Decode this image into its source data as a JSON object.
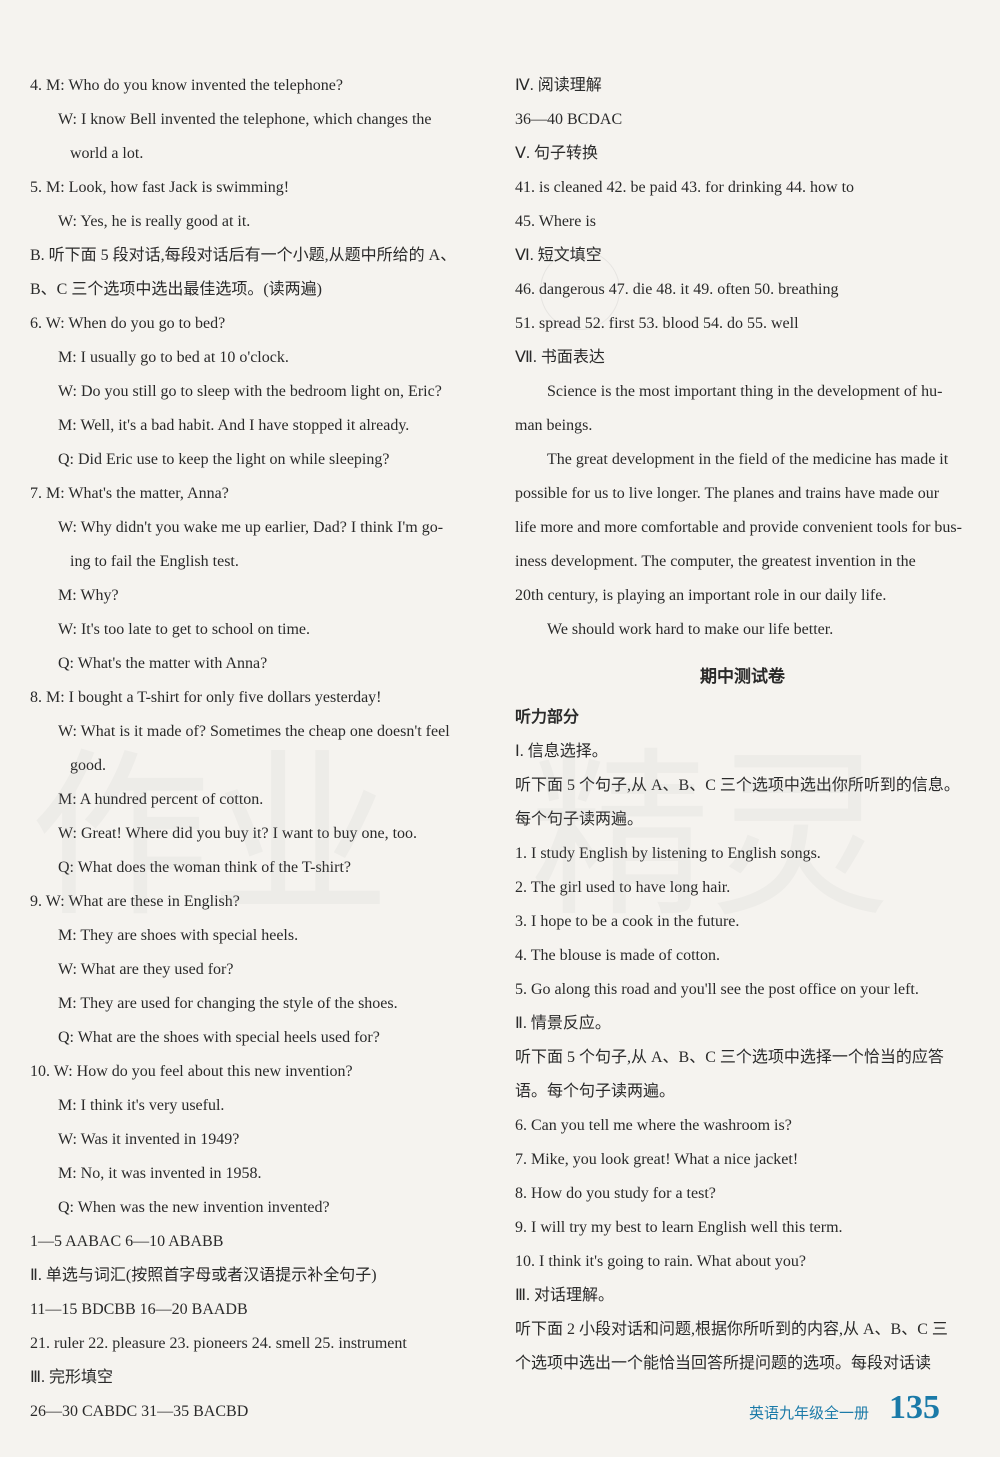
{
  "left": {
    "l1": "4. M: Who do you know invented the telephone?",
    "l2": "W: I know Bell invented the telephone, which changes the",
    "l3": "world a lot.",
    "l4": "5. M: Look, how fast Jack is swimming!",
    "l5": "W: Yes, he is really good at it.",
    "l6": "B. 听下面 5 段对话,每段对话后有一个小题,从题中所给的 A、",
    "l7": "B、C 三个选项中选出最佳选项。(读两遍)",
    "l8": "6. W: When do you go to bed?",
    "l9": "M: I usually go to bed at 10 o'clock.",
    "l10": "W: Do you still go to sleep with the bedroom light on, Eric?",
    "l11": "M: Well, it's a bad habit. And I have stopped it already.",
    "l12": "Q: Did Eric use to keep the light on while sleeping?",
    "l13": "7. M: What's the matter, Anna?",
    "l14": "W: Why didn't you wake me up earlier, Dad? I think I'm go-",
    "l15": "ing to fail the English test.",
    "l16": "M: Why?",
    "l17": "W: It's too late to get to school on time.",
    "l18": "Q: What's the matter with Anna?",
    "l19": "8. M: I bought a T-shirt for only five dollars yesterday!",
    "l20": "W: What is it made of? Sometimes the cheap one doesn't feel",
    "l21": "good.",
    "l22": "M: A hundred percent of cotton.",
    "l23": "W: Great! Where did you buy it? I want to buy one, too.",
    "l24": "Q: What does the woman think of the T-shirt?",
    "l25": "9. W: What are these in English?",
    "l26": "M: They are shoes with special heels.",
    "l27": "W: What are they used for?",
    "l28": "M: They are used for changing the style of the shoes.",
    "l29": "Q: What are the shoes with special heels used for?",
    "l30": "10. W: How do you feel about this new invention?",
    "l31": "M: I think it's very useful.",
    "l32": "W: Was it invented in 1949?",
    "l33": "M: No, it was invented in 1958.",
    "l34": "Q: When was the new invention invented?",
    "l35": "1—5   AABAC   6—10   ABABB",
    "l36": "Ⅱ. 单选与词汇(按照首字母或者汉语提示补全句子)",
    "l37": "11—15   BDCBB   16—20   BAADB",
    "l38": "21. ruler   22. pleasure   23. pioneers   24. smell   25. instrument",
    "l39": "Ⅲ. 完形填空",
    "l40": "26—30   CABDC   31—35   BACBD"
  },
  "right": {
    "r1": "Ⅳ. 阅读理解",
    "r2": "36—40   BCDAC",
    "r3": "Ⅴ. 句子转换",
    "r4": "41. is cleaned   42. be paid   43. for drinking   44. how to",
    "r5": "45. Where is",
    "r6": "Ⅵ. 短文填空",
    "r7": "46. dangerous   47. die   48. it   49. often   50. breathing",
    "r8": "51. spread   52. first   53. blood   54. do   55. well",
    "r9": "Ⅶ. 书面表达",
    "r10": "Science is the most important thing in the development of hu-",
    "r11": "man beings.",
    "r12": "The great development in the field of the medicine has made it",
    "r13": "possible for us to live longer. The planes and trains have made our",
    "r14": "life more and more comfortable and provide convenient tools for bus-",
    "r15": "iness development. The computer, the greatest invention in the",
    "r16": "20th century, is playing an important role in our daily life.",
    "r17": "We should work hard to make our life better.",
    "title": "期中测试卷",
    "r18": "听力部分",
    "r19": "Ⅰ. 信息选择。",
    "r20": "听下面 5 个句子,从 A、B、C 三个选项中选出你所听到的信息。",
    "r21": "每个句子读两遍。",
    "r22": "1. I study English by listening to English songs.",
    "r23": "2. The girl used to have long hair.",
    "r24": "3. I hope to be a cook in the future.",
    "r25": "4. The blouse is made of cotton.",
    "r26": "5. Go along this road and you'll see the post office on your left.",
    "r27": "Ⅱ. 情景反应。",
    "r28": "听下面 5 个句子,从 A、B、C 三个选项中选择一个恰当的应答",
    "r29": "语。每个句子读两遍。",
    "r30": "6. Can you tell me where the washroom is?",
    "r31": "7. Mike, you look great! What a nice jacket!",
    "r32": "8. How do you study for a test?",
    "r33": "9. I will try my best to learn English well this term.",
    "r34": "10. I think it's going to rain. What about you?",
    "r35": "Ⅲ. 对话理解。",
    "r36": "听下面 2 小段对话和问题,根据你所听到的内容,从 A、B、C 三",
    "r37": "个选项中选出一个能恰当回答所提问题的选项。每段对话读"
  },
  "footer": {
    "text": "英语九年级全一册",
    "page": "135"
  }
}
